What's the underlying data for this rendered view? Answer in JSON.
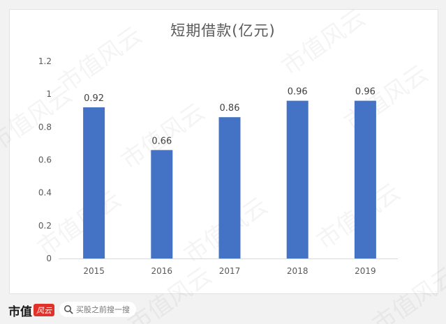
{
  "chart_data": {
    "type": "bar",
    "title": "短期借款(亿元)",
    "categories": [
      "2015",
      "2016",
      "2017",
      "2018",
      "2019"
    ],
    "values": [
      0.92,
      0.66,
      0.86,
      0.96,
      0.96
    ],
    "data_labels": [
      "0.92",
      "0.66",
      "0.86",
      "0.96",
      "0.96"
    ],
    "ylim": [
      0,
      1.2
    ],
    "yticks": [
      "0",
      "0.2",
      "0.4",
      "0.6",
      "0.8",
      "1",
      "1.2"
    ],
    "xlabel": "",
    "ylabel": "",
    "grid": false,
    "bar_color": "#4472c4"
  },
  "watermark": {
    "text": "市值风云"
  },
  "footer": {
    "brand": "市值",
    "brand_logo_text": "风云",
    "search_placeholder": "买股之前搜一搜"
  },
  "colors": {
    "brand_red": "#e0322b",
    "axis_text": "#595959"
  }
}
